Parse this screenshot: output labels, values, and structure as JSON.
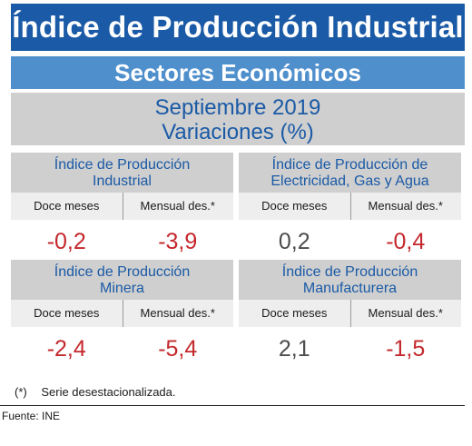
{
  "title": "Índice de Producción Industrial",
  "subtitle": "Sectores Económicos",
  "period": {
    "line1": "Septiembre 2019",
    "line2": "Variaciones (%)"
  },
  "chart_data": {
    "type": "table",
    "columns": [
      "Doce meses",
      "Mensual des.*"
    ],
    "cards": [
      {
        "title_line1": "Índice de Producción",
        "title_line2": "Industrial",
        "doce_meses": "-0,2",
        "mensual": "-3,9"
      },
      {
        "title_line1": "Índice de Producción de",
        "title_line2": "Electricidad, Gas y Agua",
        "doce_meses": "0,2",
        "mensual": "-0,4"
      },
      {
        "title_line1": "Índice de Producción",
        "title_line2": "Minera",
        "doce_meses": "-2,4",
        "mensual": "-5,4"
      },
      {
        "title_line1": "Índice de Producción",
        "title_line2": "Manufacturera",
        "doce_meses": "2,1",
        "mensual": "-1,5"
      }
    ]
  },
  "footnote": {
    "mark": "(*)",
    "text": "Serie desestacionalizada."
  },
  "source": "Fuente: INE",
  "colors": {
    "dark_blue": "#1a5aa6",
    "mid_blue": "#4f8fcc",
    "negative": "#c4282c",
    "positive": "#4d4d4d",
    "header_gray": "#cfcfcf"
  }
}
